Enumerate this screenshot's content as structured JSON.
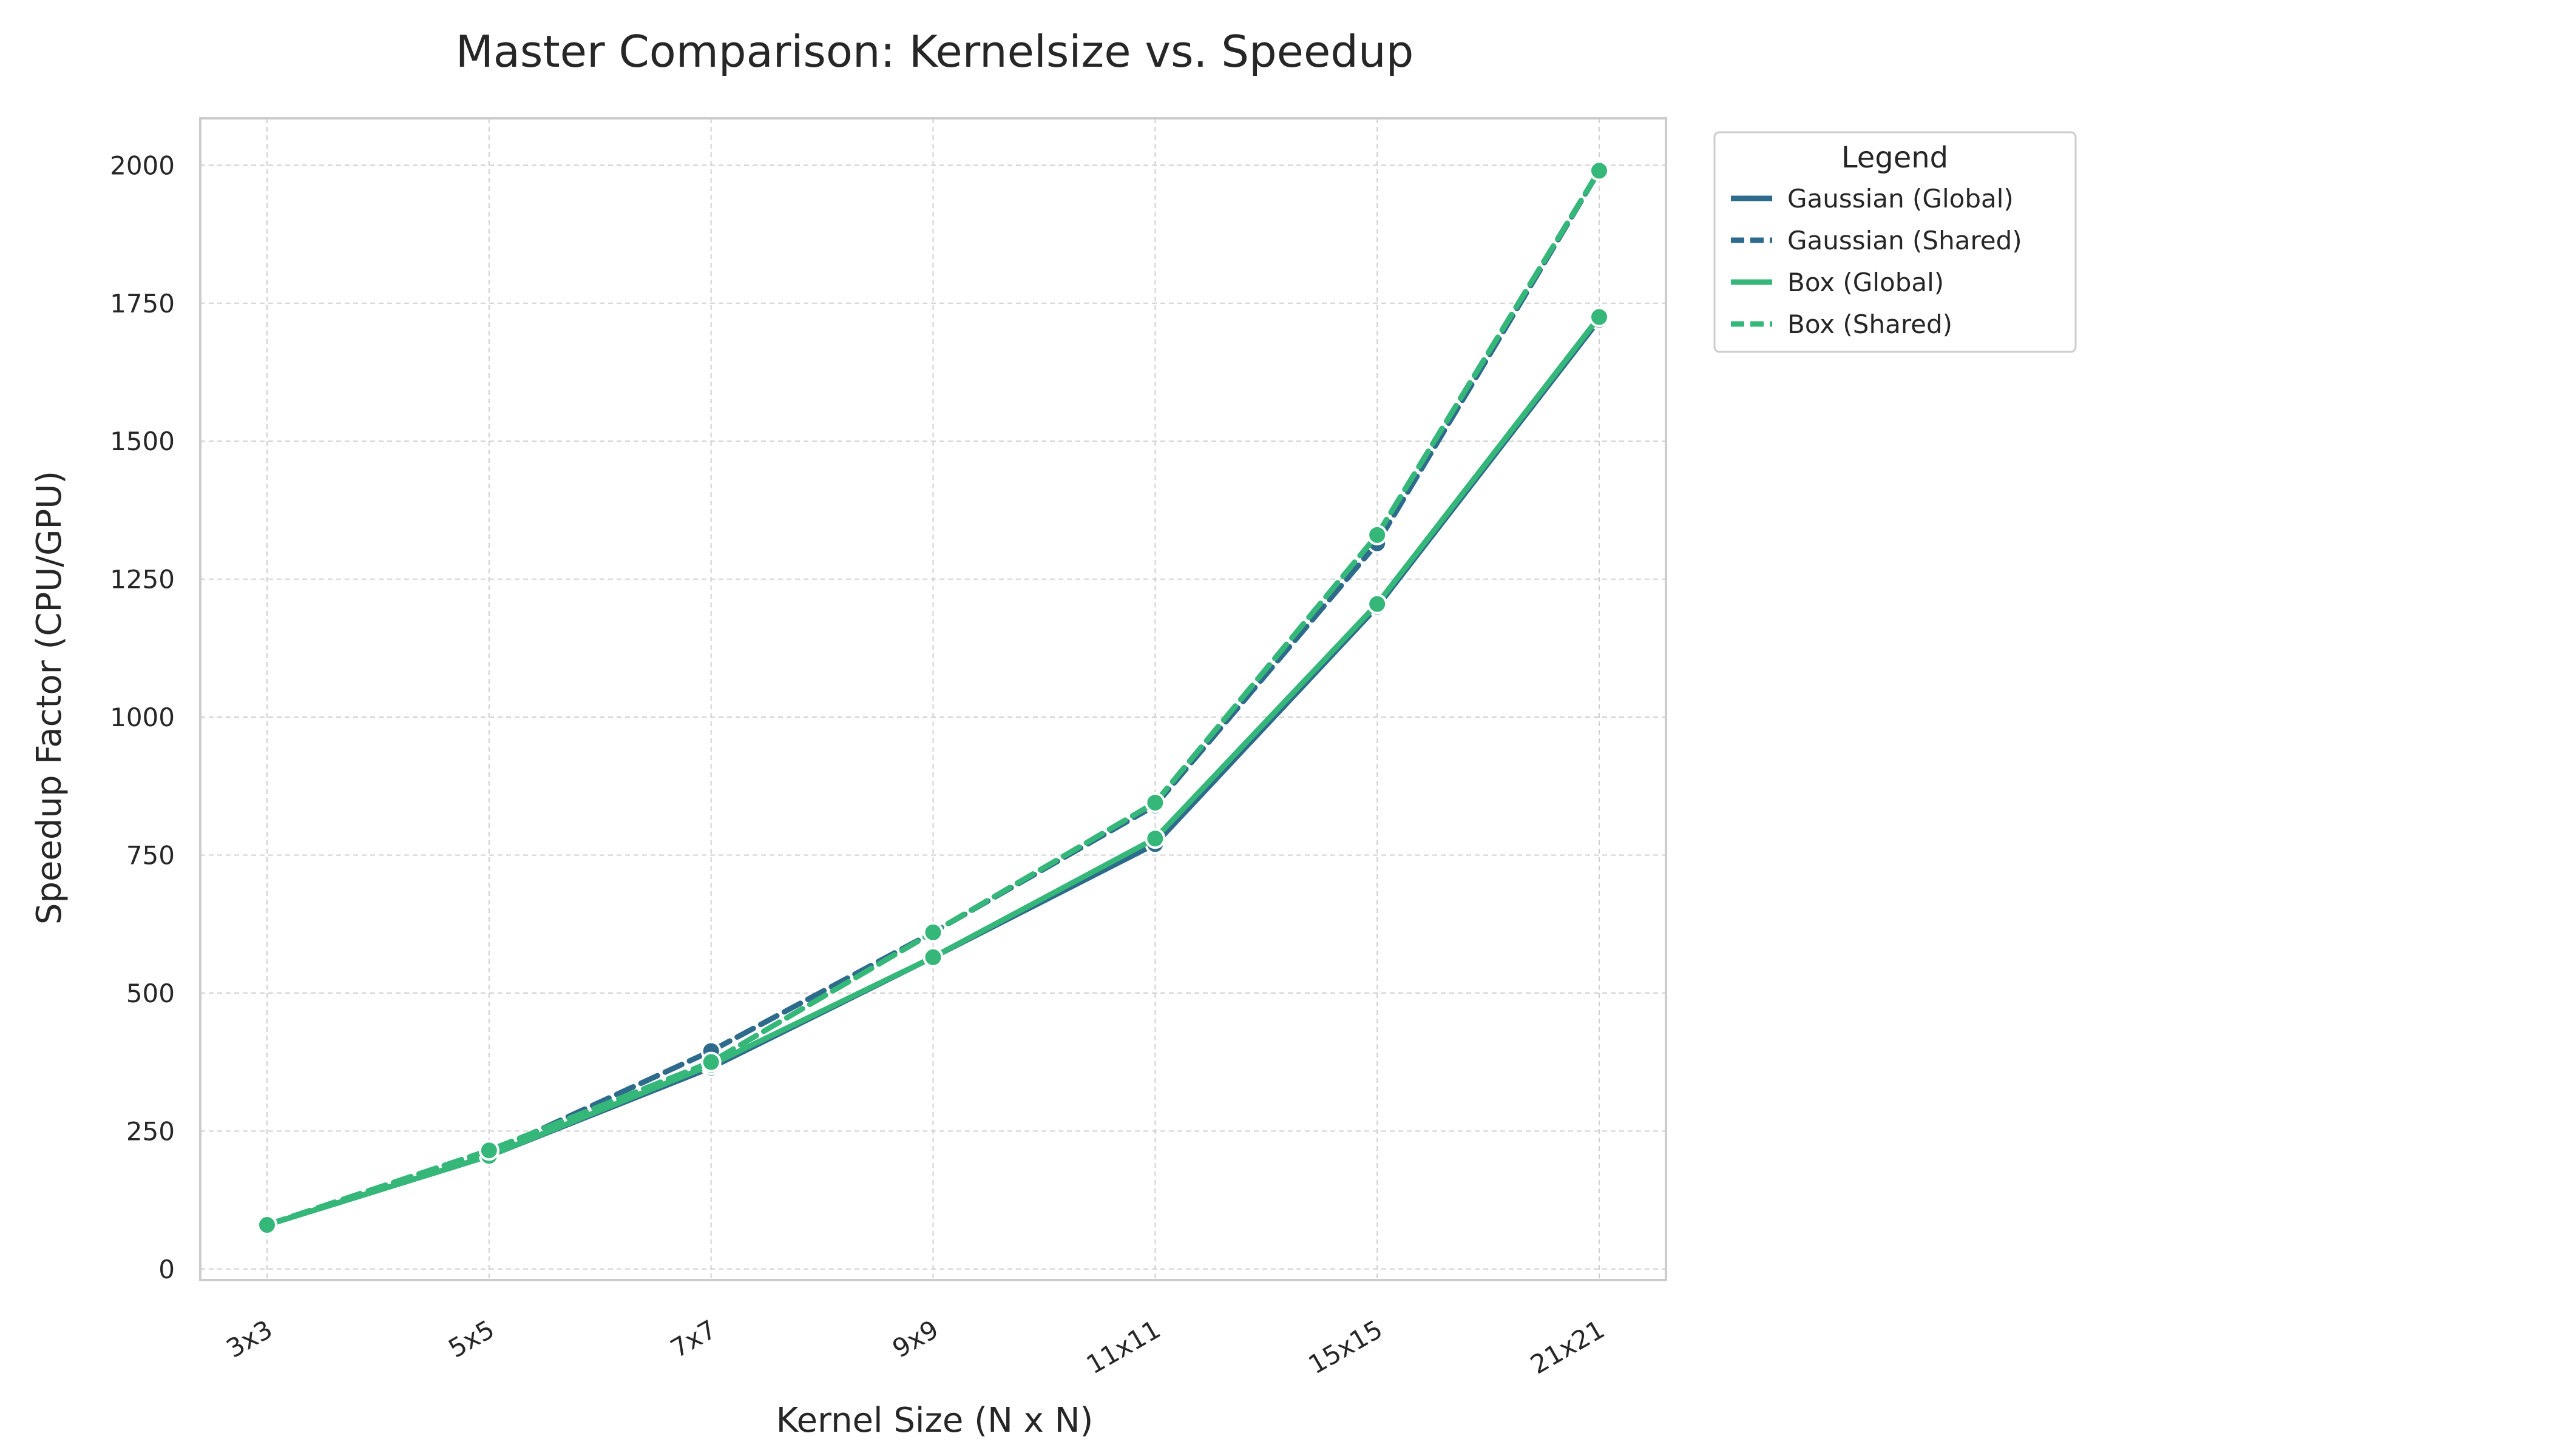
{
  "chart_data": {
    "type": "line",
    "title": "Master Comparison: Kernelsize vs. Speedup",
    "xlabel": "Kernel Size (N x N)",
    "ylabel": "Speedup Factor (CPU/GPU)",
    "categories": [
      "3x3",
      "5x5",
      "7x7",
      "9x9",
      "11x11",
      "15x15",
      "21x21"
    ],
    "ylim": [
      -20,
      2085
    ],
    "yticks": [
      0,
      250,
      500,
      750,
      1000,
      1250,
      1500,
      1750,
      2000
    ],
    "grid": true,
    "legend": {
      "title": "Legend",
      "placement": "outside-top-right"
    },
    "series": [
      {
        "name": "Gaussian (Global)",
        "color": "#2e6a8c",
        "dash": "solid",
        "values": [
          80,
          205,
          365,
          565,
          770,
          1200,
          1720
        ]
      },
      {
        "name": "Gaussian (Shared)",
        "color": "#2e6a8c",
        "dash": "dashed",
        "values": [
          80,
          210,
          395,
          610,
          840,
          1315,
          1990
        ]
      },
      {
        "name": "Box (Global)",
        "color": "#35b779",
        "dash": "solid",
        "values": [
          80,
          205,
          370,
          565,
          780,
          1205,
          1725
        ]
      },
      {
        "name": "Box (Shared)",
        "color": "#35b779",
        "dash": "dashed",
        "values": [
          80,
          215,
          375,
          610,
          845,
          1330,
          1990
        ]
      }
    ]
  }
}
